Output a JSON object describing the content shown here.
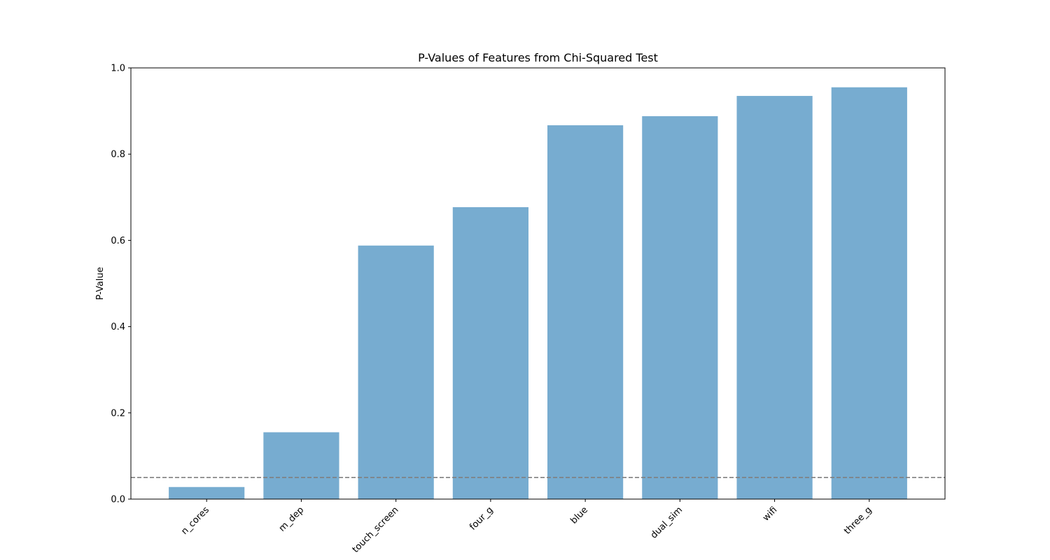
{
  "chart_data": {
    "type": "bar",
    "title": "P-Values of Features from Chi-Squared Test",
    "xlabel": "",
    "ylabel": "P-Value",
    "categories": [
      "n_cores",
      "m_dep",
      "touch_screen",
      "four_g",
      "blue",
      "dual_sim",
      "wifi",
      "three_g"
    ],
    "values": [
      0.028,
      0.155,
      0.588,
      0.677,
      0.867,
      0.888,
      0.935,
      0.955
    ],
    "ylim": [
      0,
      1.0
    ],
    "yticks": [
      "0.0",
      "0.2",
      "0.4",
      "0.6",
      "0.8",
      "1.0"
    ],
    "threshold": 0.05,
    "bar_color": "#77acd0",
    "threshold_color": "#808080",
    "grid": false,
    "legend": "none"
  }
}
